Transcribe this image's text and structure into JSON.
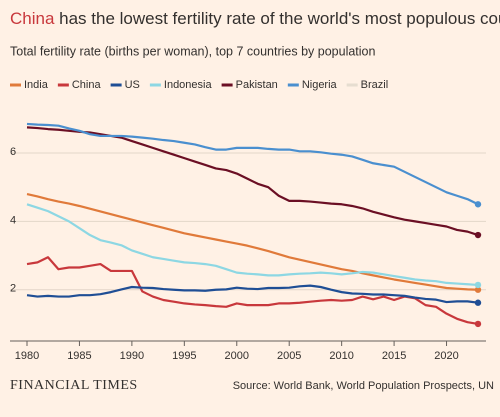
{
  "chart_data": {
    "type": "line",
    "title_highlight": "China",
    "title": " has the lowest fertility rate of the world's most populous countries",
    "subtitle": "Total fertility rate (births per woman), top 7 countries by population",
    "source": "Source: World Bank, World Population Prospects, UN",
    "brand": "FINANCIAL TIMES",
    "x": [
      1980,
      1981,
      1982,
      1983,
      1984,
      1985,
      1986,
      1987,
      1988,
      1989,
      1990,
      1991,
      1992,
      1993,
      1994,
      1995,
      1996,
      1997,
      1998,
      1999,
      2000,
      2001,
      2002,
      2003,
      2004,
      2005,
      2006,
      2007,
      2008,
      2009,
      2010,
      2011,
      2012,
      2013,
      2014,
      2015,
      2016,
      2017,
      2018,
      2019,
      2020,
      2021,
      2022,
      2023
    ],
    "xlim": [
      1980,
      2023
    ],
    "xticks": [
      1980,
      1985,
      1990,
      1995,
      2000,
      2005,
      2010,
      2015,
      2020
    ],
    "ylim": [
      0.5,
      7.2
    ],
    "yticks": [
      2,
      4,
      6
    ],
    "grid": true,
    "series": [
      {
        "name": "India",
        "color": "#e07a3a",
        "values": [
          4.8,
          4.73,
          4.65,
          4.58,
          4.52,
          4.45,
          4.37,
          4.29,
          4.21,
          4.13,
          4.05,
          3.97,
          3.89,
          3.81,
          3.73,
          3.65,
          3.59,
          3.53,
          3.47,
          3.41,
          3.35,
          3.29,
          3.21,
          3.13,
          3.04,
          2.95,
          2.88,
          2.81,
          2.74,
          2.67,
          2.6,
          2.55,
          2.48,
          2.42,
          2.36,
          2.3,
          2.25,
          2.2,
          2.15,
          2.1,
          2.05,
          2.03,
          2.01,
          2.0
        ]
      },
      {
        "name": "China",
        "color": "#c8383c",
        "values": [
          2.75,
          2.8,
          2.95,
          2.6,
          2.65,
          2.65,
          2.7,
          2.75,
          2.55,
          2.55,
          2.55,
          1.95,
          1.8,
          1.7,
          1.65,
          1.6,
          1.57,
          1.55,
          1.52,
          1.5,
          1.6,
          1.55,
          1.55,
          1.55,
          1.6,
          1.6,
          1.62,
          1.65,
          1.68,
          1.7,
          1.68,
          1.7,
          1.8,
          1.72,
          1.8,
          1.7,
          1.8,
          1.75,
          1.55,
          1.5,
          1.3,
          1.15,
          1.05,
          1.0
        ]
      },
      {
        "name": "US",
        "color": "#1f4e95",
        "values": [
          1.84,
          1.8,
          1.82,
          1.8,
          1.8,
          1.84,
          1.84,
          1.87,
          1.93,
          2.01,
          2.08,
          2.06,
          2.05,
          2.02,
          2.0,
          1.98,
          1.98,
          1.97,
          2.0,
          2.01,
          2.06,
          2.03,
          2.02,
          2.05,
          2.05,
          2.06,
          2.1,
          2.12,
          2.08,
          2.0,
          1.93,
          1.89,
          1.88,
          1.86,
          1.86,
          1.84,
          1.82,
          1.77,
          1.73,
          1.71,
          1.64,
          1.66,
          1.66,
          1.62
        ]
      },
      {
        "name": "Indonesia",
        "color": "#8dd7e3",
        "values": [
          4.5,
          4.4,
          4.3,
          4.15,
          4.0,
          3.8,
          3.6,
          3.45,
          3.38,
          3.3,
          3.15,
          3.05,
          2.95,
          2.9,
          2.85,
          2.8,
          2.78,
          2.75,
          2.7,
          2.6,
          2.5,
          2.47,
          2.45,
          2.42,
          2.42,
          2.45,
          2.47,
          2.48,
          2.5,
          2.48,
          2.45,
          2.48,
          2.52,
          2.5,
          2.45,
          2.4,
          2.35,
          2.3,
          2.27,
          2.25,
          2.2,
          2.18,
          2.16,
          2.14
        ]
      },
      {
        "name": "Pakistan",
        "color": "#6b0f24",
        "values": [
          6.75,
          6.73,
          6.7,
          6.68,
          6.65,
          6.62,
          6.6,
          6.55,
          6.5,
          6.45,
          6.35,
          6.25,
          6.15,
          6.05,
          5.95,
          5.85,
          5.75,
          5.65,
          5.55,
          5.5,
          5.4,
          5.25,
          5.1,
          5.0,
          4.75,
          4.6,
          4.6,
          4.58,
          4.55,
          4.52,
          4.5,
          4.45,
          4.38,
          4.28,
          4.2,
          4.12,
          4.05,
          4.0,
          3.95,
          3.9,
          3.85,
          3.75,
          3.7,
          3.6
        ]
      },
      {
        "name": "Nigeria",
        "color": "#4a8fcf",
        "values": [
          6.85,
          6.83,
          6.82,
          6.8,
          6.72,
          6.65,
          6.55,
          6.5,
          6.5,
          6.5,
          6.48,
          6.45,
          6.42,
          6.38,
          6.35,
          6.3,
          6.25,
          6.17,
          6.1,
          6.1,
          6.15,
          6.15,
          6.15,
          6.12,
          6.1,
          6.1,
          6.05,
          6.05,
          6.02,
          5.98,
          5.95,
          5.9,
          5.8,
          5.7,
          5.65,
          5.6,
          5.45,
          5.3,
          5.15,
          5.0,
          4.85,
          4.75,
          4.65,
          4.5
        ]
      },
      {
        "name": "Brazil",
        "color": "#e6ddd0",
        "hidden": true,
        "values": [
          null,
          null,
          null,
          null,
          null,
          null,
          null,
          null,
          null,
          null,
          null,
          null,
          null,
          null,
          null,
          null,
          null,
          null,
          null,
          null,
          null,
          null,
          null,
          null,
          null,
          null,
          null,
          null,
          null,
          null,
          null,
          null,
          null,
          null,
          null,
          null,
          null,
          null,
          null,
          null,
          null,
          null,
          null,
          null
        ]
      }
    ]
  }
}
